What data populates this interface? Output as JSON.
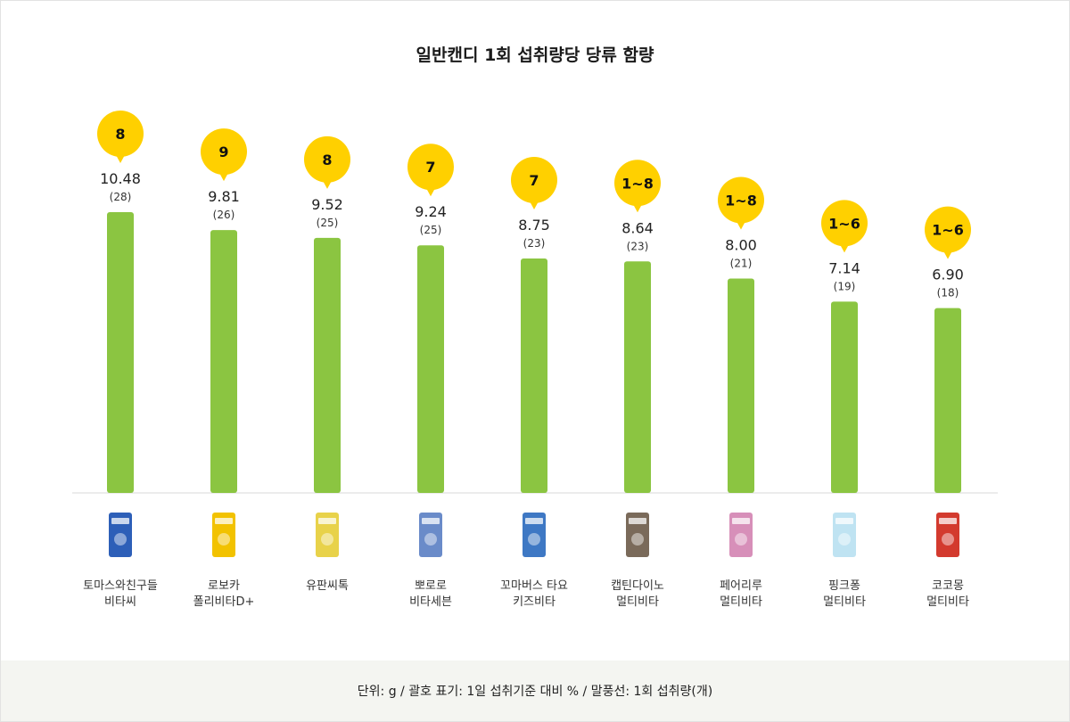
{
  "chart_data": {
    "type": "bar",
    "title": "일반캔디 1회 섭취량당 당류 함량",
    "categories": [
      [
        "토마스와친구들",
        "비타씨"
      ],
      [
        "로보카",
        "폴리비타D+"
      ],
      [
        "유판씨톡"
      ],
      [
        "뽀로로",
        "비타세븐"
      ],
      [
        "꼬마버스 타요",
        "키즈비타"
      ],
      [
        "캡틴다이노",
        "멀티비타"
      ],
      [
        "페어리루",
        "멀티비타"
      ],
      [
        "핑크퐁",
        "멀티비타"
      ],
      [
        "코코몽",
        "멀티비타"
      ]
    ],
    "series": [
      {
        "values": [
          10.48,
          9.81,
          9.52,
          9.24,
          8.75,
          8.64,
          8.0,
          7.14,
          6.9
        ],
        "value_labels": [
          "10.48",
          "9.81",
          "9.52",
          "9.24",
          "8.75",
          "8.64",
          "8.00",
          "7.14",
          "6.90"
        ],
        "percent_labels": [
          "(28)",
          "(26)",
          "(25)",
          "(25)",
          "(23)",
          "(23)",
          "(21)",
          "(19)",
          "(18)"
        ],
        "bubble_labels": [
          "8",
          "9",
          "8",
          "7",
          "7",
          "1~8",
          "1~8",
          "1~6",
          "1~6"
        ]
      }
    ],
    "ylim": [
      0,
      12
    ],
    "xlabel": "",
    "ylabel": "",
    "grid": false,
    "colors": {
      "bar": "#8bc541",
      "bubble": "#ffd000",
      "baseline": "#d9d9d9"
    }
  },
  "product_icons": [
    "thomas-candy-package-icon",
    "robocar-poli-candy-package-icon",
    "yupan-candy-package-icon",
    "pororo-candy-jar-icon",
    "tayo-candy-package-icon",
    "captain-dino-candy-package-icon",
    "fairy-lu-candy-package-icon",
    "pinkfong-candy-package-icon",
    "cocomong-candy-package-icon"
  ],
  "footer": {
    "note": "단위: g / 괄호 표기: 1일 섭취기준 대비 % / 말풍선: 1회 섭취량(개)"
  }
}
